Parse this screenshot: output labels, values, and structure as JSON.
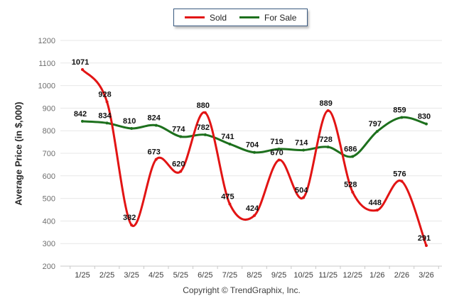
{
  "chart_data": {
    "type": "line",
    "title": "",
    "xlabel": "",
    "ylabel": "Average Price (in $,000)",
    "categories": [
      "1/25",
      "2/25",
      "3/25",
      "4/25",
      "5/25",
      "6/25",
      "7/25",
      "8/25",
      "9/25",
      "10/25",
      "11/25",
      "12/25",
      "1/26",
      "2/26",
      "3/26"
    ],
    "series": [
      {
        "name": "Sold",
        "color": "#e21414",
        "values": [
          1071,
          928,
          382,
          673,
          620,
          880,
          475,
          424,
          670,
          504,
          889,
          528,
          448,
          576,
          291
        ]
      },
      {
        "name": "For Sale",
        "color": "#1d701d",
        "values": [
          842,
          834,
          810,
          824,
          774,
          782,
          741,
          704,
          719,
          714,
          728,
          686,
          797,
          859,
          830
        ]
      }
    ],
    "ylim": [
      200,
      1200
    ],
    "yticks": [
      200,
      300,
      400,
      500,
      600,
      700,
      800,
      900,
      1000,
      1100,
      1200
    ],
    "grid": true,
    "data_labels": true,
    "line_style": "smooth",
    "legend_position": "top-center"
  },
  "legend": {
    "items": [
      {
        "label": "Sold",
        "color": "#e21414"
      },
      {
        "label": "For Sale",
        "color": "#1d701d"
      }
    ]
  },
  "footer": {
    "copyright": "Copyright © TrendGraphix, Inc."
  },
  "colors": {
    "background": "#ffffff",
    "gridline": "#e7e7e7",
    "axis_baseline": "#c9c9c9",
    "sold_line": "#e21414",
    "for_sale_line": "#1d701d",
    "legend_border": "#3a5a80"
  }
}
